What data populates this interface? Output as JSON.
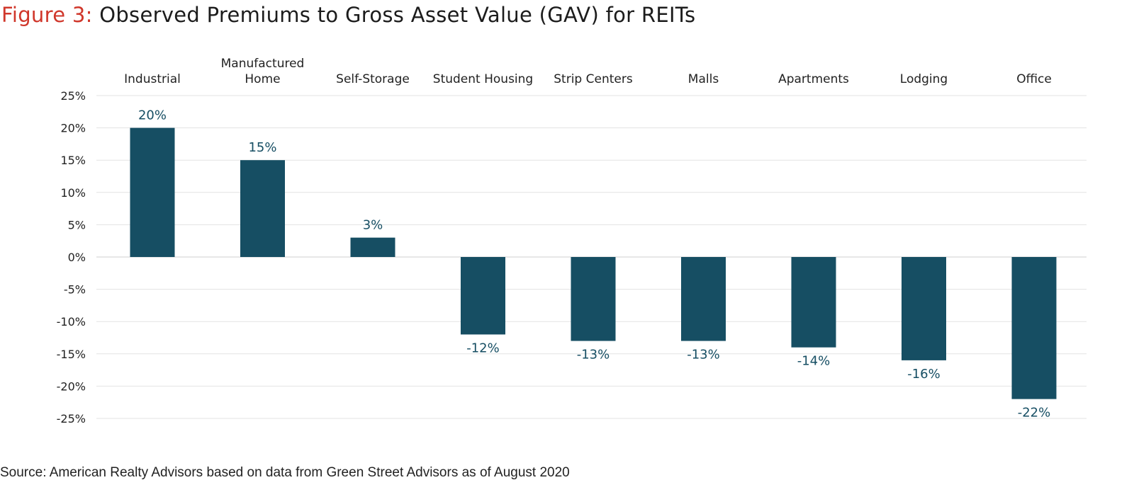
{
  "title": {
    "figure_label": "Figure 3:",
    "text": "Observed Premiums to Gross Asset Value (GAV) for REITs"
  },
  "source": "Source: American Realty Advisors based on data from Green Street Advisors as of August 2020",
  "colors": {
    "bar": "#164e63",
    "title_accent": "#d0372b",
    "gridline": "#e3e3e3",
    "data_label": "#164e63"
  },
  "chart_data": {
    "type": "bar",
    "categories": [
      "Industrial",
      "Manufactured Home",
      "Self-Storage",
      "Student Housing",
      "Strip Centers",
      "Malls",
      "Apartments",
      "Lodging",
      "Office"
    ],
    "category_label_lines": [
      [
        "Industrial"
      ],
      [
        "Manufactured",
        "Home"
      ],
      [
        "Self-Storage"
      ],
      [
        "Student Housing"
      ],
      [
        "Strip Centers"
      ],
      [
        "Malls"
      ],
      [
        "Apartments"
      ],
      [
        "Lodging"
      ],
      [
        "Office"
      ]
    ],
    "values": [
      20,
      15,
      3,
      -12,
      -13,
      -13,
      -14,
      -16,
      -22
    ],
    "data_labels": [
      "20%",
      "15%",
      "3%",
      "-12%",
      "-13%",
      "-13%",
      "-14%",
      "-16%",
      "-22%"
    ],
    "y_ticks": [
      25,
      20,
      15,
      10,
      5,
      0,
      -5,
      -10,
      -15,
      -20,
      -25
    ],
    "y_tick_labels": [
      "25%",
      "20%",
      "15%",
      "10%",
      "5%",
      "0%",
      "-5%",
      "-10%",
      "-15%",
      "-20%",
      "-25%"
    ],
    "ylim": [
      -25,
      25
    ],
    "unit": "%",
    "category_labels_position": "top",
    "grid": true,
    "legend": false
  }
}
